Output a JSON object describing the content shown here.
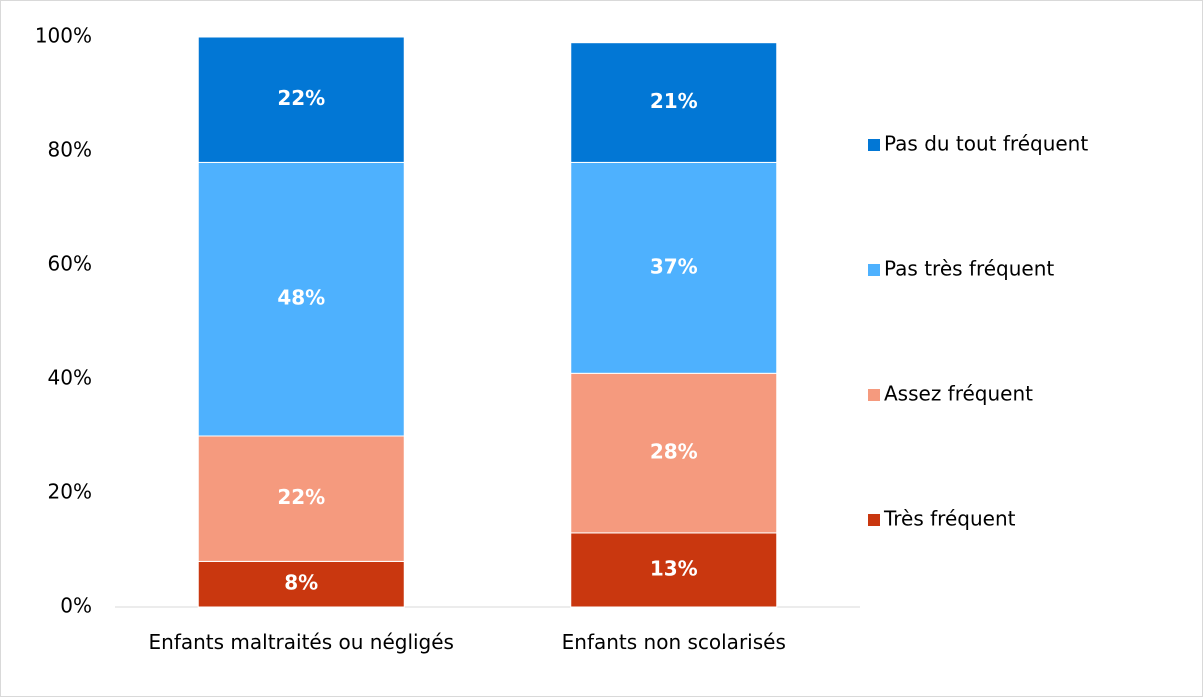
{
  "chart_data": {
    "type": "stacked_bar",
    "categories": [
      "Enfants maltraités ou négligés",
      "Enfants non scolarisés"
    ],
    "series": [
      {
        "name": "Très fréquent",
        "color": "#c9370f",
        "values": [
          8,
          13
        ],
        "value_labels": [
          "8%",
          "13%"
        ]
      },
      {
        "name": "Assez fréquent",
        "color": "#f59a7e",
        "values": [
          22,
          28
        ],
        "value_labels": [
          "22%",
          "28%"
        ]
      },
      {
        "name": "Pas très fréquent",
        "color": "#4eb1fe",
        "values": [
          48,
          37
        ],
        "value_labels": [
          "48%",
          "37%"
        ]
      },
      {
        "name": "Pas du tout fréquent",
        "color": "#0277d5",
        "values": [
          22,
          21
        ],
        "value_labels": [
          "22%",
          "21%"
        ]
      }
    ],
    "ylim": [
      0,
      100
    ],
    "yticks": [
      {
        "value": 0,
        "label": "0%"
      },
      {
        "value": 20,
        "label": "20%"
      },
      {
        "value": 40,
        "label": "40%"
      },
      {
        "value": 60,
        "label": "60%"
      },
      {
        "value": 80,
        "label": "80%"
      },
      {
        "value": 100,
        "label": "100%"
      }
    ],
    "legend": "right",
    "grid": false
  }
}
